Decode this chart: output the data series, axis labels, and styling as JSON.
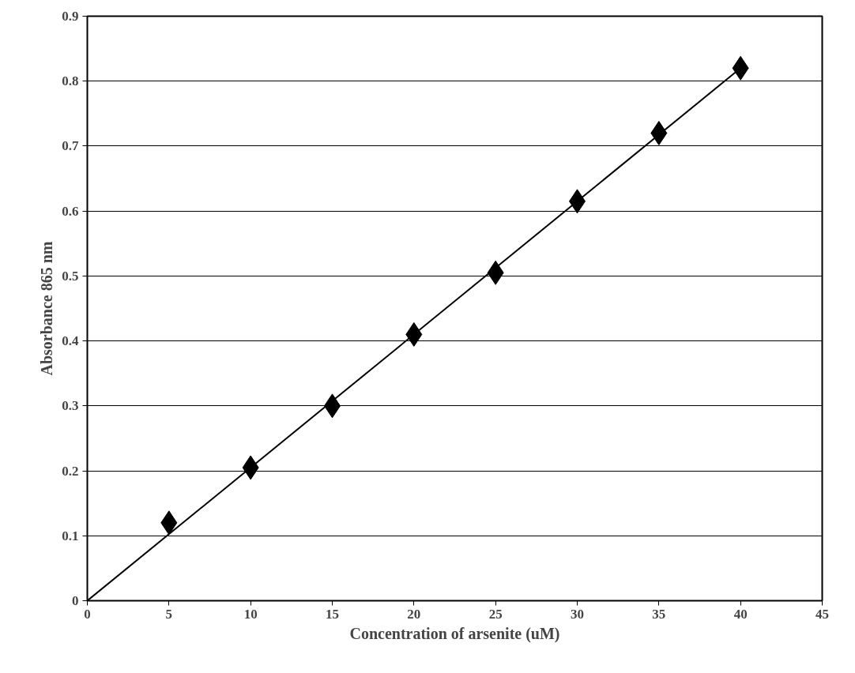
{
  "chart_data": {
    "type": "scatter",
    "xlabel": "Concentration of arsenite (uM)",
    "ylabel": "Absorbance 865 nm",
    "xlim": [
      0,
      45
    ],
    "ylim": [
      0,
      0.9
    ],
    "xticks": [
      0,
      5,
      10,
      15,
      20,
      25,
      30,
      35,
      40,
      45
    ],
    "yticks": [
      0,
      0.1,
      0.2,
      0.3,
      0.4,
      0.5,
      0.6,
      0.7,
      0.8,
      0.9
    ],
    "grid": "y",
    "marker": "diamond",
    "series": [
      {
        "color": "#000000",
        "x": [
          5,
          10,
          15,
          20,
          25,
          30,
          35,
          40
        ],
        "values": [
          0.12,
          0.205,
          0.3,
          0.41,
          0.505,
          0.615,
          0.72,
          0.82
        ]
      },
      {
        "type": "line",
        "color": "#000000",
        "x": [
          0,
          40
        ],
        "values": [
          0,
          0.82
        ],
        "line_style": "solid",
        "marker": "none"
      }
    ]
  }
}
